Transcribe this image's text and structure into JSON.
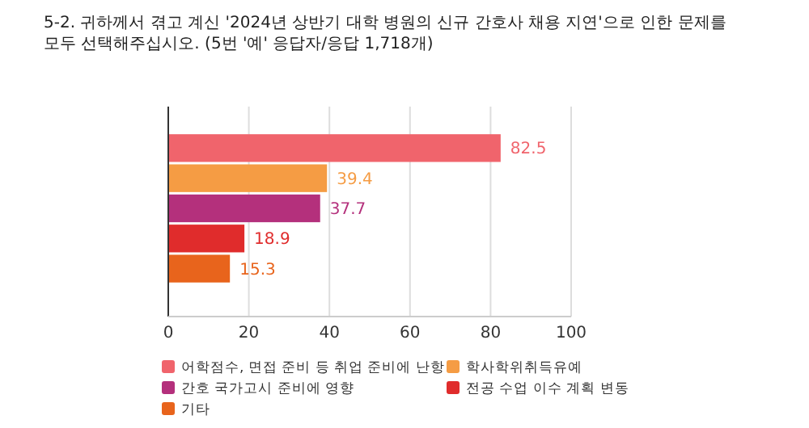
{
  "chart_data": {
    "type": "bar",
    "orientation": "horizontal",
    "title": "5-2. 귀하께서 겪고 계신 '2024년 상반기 대학 병원의 신규 간호사 채용 지연'으로 인한 문제를 모두 선택해주십시오. (5번 '예' 응답자/응답 1,718개)",
    "categories": [
      null
    ],
    "series": [
      {
        "name": "어학점수, 면접 준비 등 취업 준비에 난항",
        "color": "#f0646c",
        "values": [
          82.5
        ]
      },
      {
        "name": "학사학위취득유예",
        "color": "#f59c44",
        "values": [
          39.4
        ]
      },
      {
        "name": "간호 국가고시 준비에 영향",
        "color": "#b4307c",
        "values": [
          37.7
        ]
      },
      {
        "name": "전공 수업 이수 계획 변동",
        "color": "#e02c2c",
        "values": [
          18.9
        ]
      },
      {
        "name": "기타",
        "color": "#e8641c",
        "values": [
          15.3
        ]
      }
    ],
    "xlim": [
      0,
      100
    ],
    "xticks": [
      0,
      20,
      40,
      60,
      80,
      100
    ],
    "grid": "x",
    "legend": "bottom",
    "data_labels": true
  }
}
